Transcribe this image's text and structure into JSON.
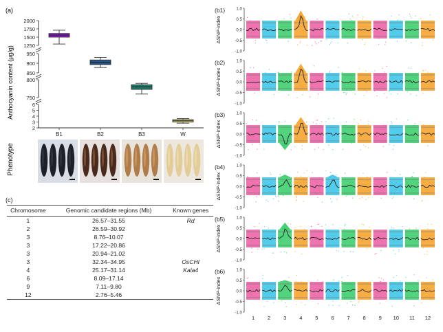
{
  "panel_a": {
    "label": "(a)",
    "ylabel": "Anthocyanin content (μg/g)",
    "phenotype_label": "Phenotype",
    "chart_data": {
      "type": "box",
      "categories": [
        "B1",
        "B2",
        "B3",
        "W"
      ],
      "ylabel": "Anthocyanin content (μg/g)",
      "y_breaks": [
        {
          "range": [
            1250,
            2000
          ],
          "ticks": [
            "1250",
            "1500",
            "1750",
            "2000"
          ]
        },
        {
          "range": [
            850,
            950
          ],
          "ticks": [
            "850",
            "900",
            "950"
          ]
        },
        {
          "range": [
            750,
            800
          ],
          "ticks": [
            "750",
            "800"
          ]
        },
        {
          "range": [
            2,
            6
          ],
          "ticks": [
            "2",
            "3",
            "4",
            "5",
            "6"
          ]
        }
      ],
      "boxes": [
        {
          "name": "B1",
          "min": 1290,
          "q1": 1500,
          "median": 1560,
          "q3": 1610,
          "max": 1710,
          "color": "#8a1ac7"
        },
        {
          "name": "B2",
          "min": 878,
          "q1": 893,
          "median": 905,
          "q3": 917,
          "max": 930,
          "color": "#25548a"
        },
        {
          "name": "B3",
          "min": 760,
          "q1": 773,
          "median": 780,
          "q3": 786,
          "max": 790,
          "color": "#1a7c6a"
        },
        {
          "name": "W",
          "min": 2.8,
          "q1": 3.0,
          "median": 3.2,
          "q3": 3.4,
          "max": 3.6,
          "color": "#d6cc55"
        }
      ]
    }
  },
  "panel_c": {
    "label": "(c)",
    "columns": [
      "Chromosome",
      "Genomic candidate regions (Mb)",
      "Known genes"
    ],
    "rows": [
      [
        "1",
        "26.57–31.55",
        "Rd"
      ],
      [
        "2",
        "26.59–30.92",
        ""
      ],
      [
        "3",
        "8.76–10.07",
        ""
      ],
      [
        "3",
        "17.22–20.86",
        ""
      ],
      [
        "3",
        "20.94–21.02",
        ""
      ],
      [
        "3",
        "32.34–34.95",
        "OsCHI"
      ],
      [
        "4",
        "25.17–31.14",
        "Kala4"
      ],
      [
        "6",
        "8.09–17.14",
        ""
      ],
      [
        "9",
        "7.11–9.80",
        ""
      ],
      [
        "12",
        "2.76–5.46",
        ""
      ]
    ]
  },
  "panel_b": {
    "ylabel": "ΔSNP-index",
    "yticks": [
      "1.0",
      "0.5",
      "0.0",
      "-0.5",
      "-1.0"
    ],
    "chromosomes": [
      "1",
      "2",
      "3",
      "4",
      "5",
      "6",
      "7",
      "8",
      "9",
      "10",
      "11",
      "12"
    ],
    "chrom_colors": [
      "#ec5aa0",
      "#35c3e9",
      "#33cc66",
      "#f5a023",
      "#ec5aa0",
      "#35c3e9",
      "#33cc66",
      "#f5a023",
      "#ec5aa0",
      "#35c3e9",
      "#33cc66",
      "#f5a023"
    ],
    "chart_data": [
      {
        "label": "(b1)",
        "peaks": [
          {
            "chrom": "4",
            "value": 0.65
          }
        ]
      },
      {
        "label": "(b2)",
        "peaks": [
          {
            "chrom": "4",
            "value": 0.6
          }
        ]
      },
      {
        "label": "(b3)",
        "peaks": [
          {
            "chrom": "4",
            "value": 0.55
          },
          {
            "chrom": "3",
            "value": -0.5
          }
        ]
      },
      {
        "label": "(b4)",
        "peaks": [
          {
            "chrom": "3",
            "value": 0.3
          },
          {
            "chrom": "6",
            "value": 0.3
          }
        ]
      },
      {
        "label": "(b5)",
        "peaks": [
          {
            "chrom": "3",
            "value": 0.5
          }
        ]
      },
      {
        "label": "(b6)",
        "peaks": [
          {
            "chrom": "3",
            "value": 0.25
          }
        ]
      }
    ]
  }
}
